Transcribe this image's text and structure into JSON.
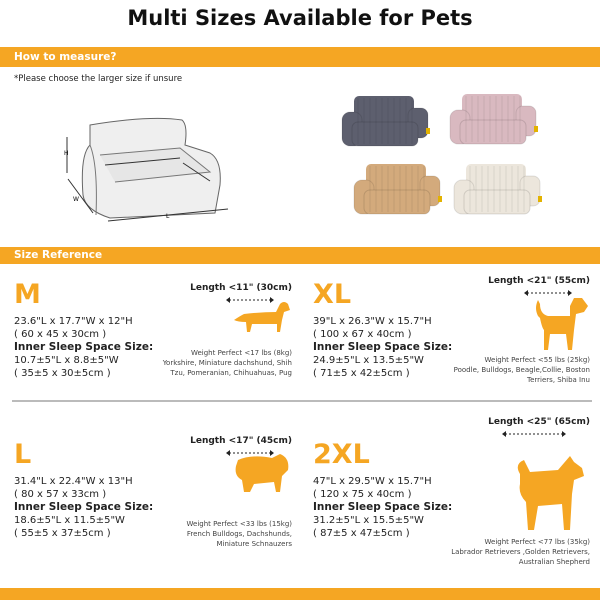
{
  "title": "Multi Sizes Available for Pets",
  "measure": {
    "header": "How to measure?",
    "note": "*Please choose the larger size if unsure",
    "diagram_labels": {
      "height": "H",
      "width": "W",
      "length": "L"
    }
  },
  "colors": {
    "accent": "#F5A623",
    "sofa_variants": [
      "#5d5f6e",
      "#d9b9c0",
      "#d3aa7c",
      "#ece6dc"
    ]
  },
  "size_reference": {
    "header": "Size Reference",
    "sizes": [
      {
        "name": "M",
        "dims": "23.6\"L x 17.7\"W x 12\"H",
        "dims_cm": "( 60 x 45 x 30cm )",
        "inner_label": "Inner Sleep Space Size:",
        "inner": "10.7±5\"L x 8.8±5\"W",
        "inner_cm": "( 35±5 x 30±5cm )",
        "length": "Length <11\" (30cm)",
        "weight": "Weight Perfect <17 lbs (8kg)",
        "breeds": "Yorkshire, Miniature dachshund, Shih Tzu, Pomeranian, Chihuahuas, Pug",
        "icon": "dachshund-icon"
      },
      {
        "name": "XL",
        "dims": "39\"L x 26.3\"W x 15.7\"H",
        "dims_cm": "( 100 x 67 x 40cm )",
        "inner_label": "Inner Sleep Space Size:",
        "inner": "24.9±5\"L x 13.5±5\"W",
        "inner_cm": "( 71±5 x 42±5cm )",
        "length": "Length <21\" (55cm)",
        "weight": "Weight Perfect <55 lbs (25kg)",
        "breeds": "Poodle, Bulldogs, Beagle,Collie, Boston Terriers, Shiba Inu",
        "icon": "beagle-icon"
      },
      {
        "name": "L",
        "dims": "31.4\"L x 22.4\"W x 13\"H",
        "dims_cm": "( 80 x 57 x 33cm )",
        "inner_label": "Inner Sleep Space Size:",
        "inner": "18.6±5\"L x 11.5±5\"W",
        "inner_cm": "( 55±5 x 37±5cm )",
        "length": "Length <17\" (45cm)",
        "weight": "Weight Perfect <33 lbs (15kg)",
        "breeds": "French Bulldogs, Dachshunds, Miniature Schnauzers",
        "icon": "bulldog-icon"
      },
      {
        "name": "2XL",
        "dims": "47\"L x 29.5\"W x 15.7\"H",
        "dims_cm": "( 120 x 75 x 40cm )",
        "inner_label": "Inner Sleep Space Size:",
        "inner": "31.2±5\"L x 15.5±5\"W",
        "inner_cm": "( 87±5 x 47±5cm )",
        "length": "Length <25\" (65cm)",
        "weight": "Weight Perfect <77 lbs (35kg)",
        "breeds": "Labrador Retrievers ,Golden Retrievers, Australian Shepherd",
        "icon": "spitz-icon"
      }
    ]
  }
}
